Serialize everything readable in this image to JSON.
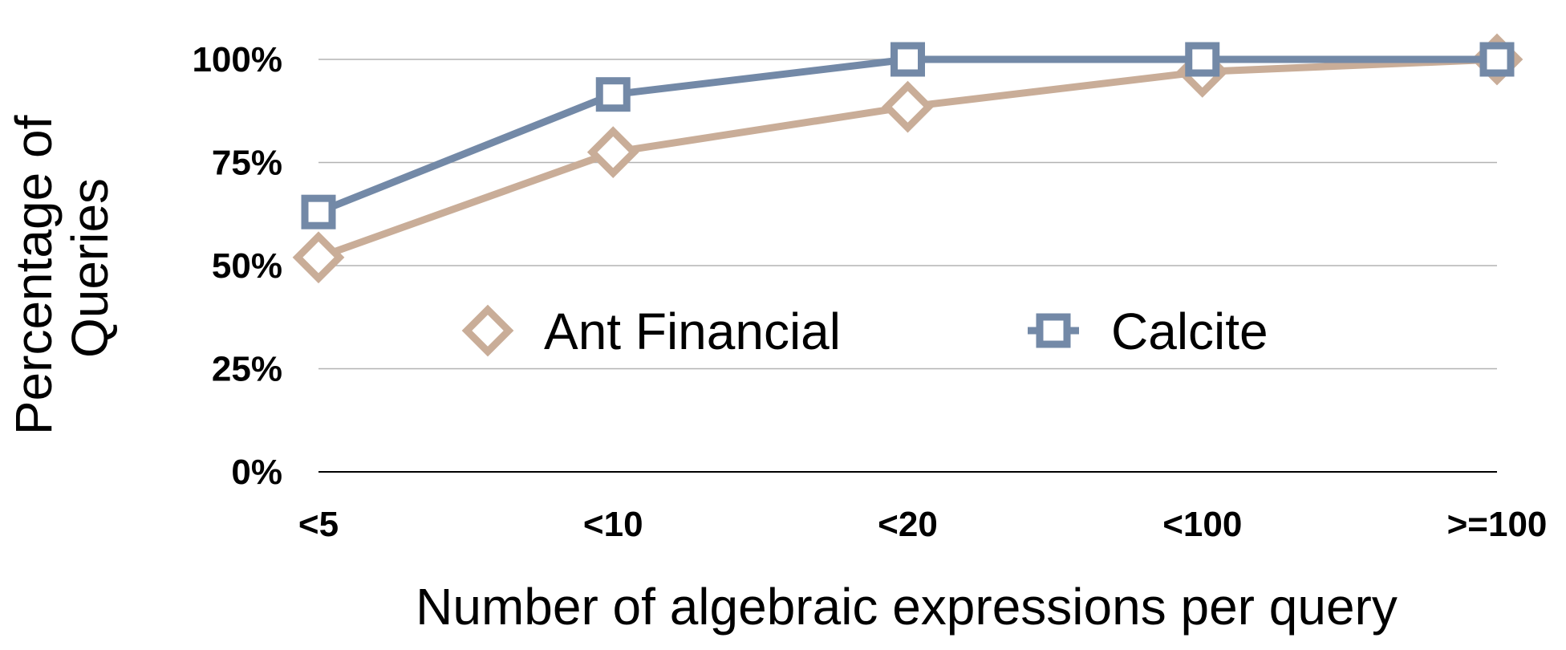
{
  "chart_data": {
    "type": "line",
    "categories": [
      "<5",
      "<10",
      "<20",
      "<100",
      ">=100"
    ],
    "xlabel": "Number of algebraic expressions per query",
    "ylabel": "Percentage of Queries",
    "ylim": [
      0,
      100
    ],
    "yticks": [
      "0%",
      "25%",
      "50%",
      "75%",
      "100%"
    ],
    "grid": true,
    "legend_position": "center",
    "series": [
      {
        "name": "Ant Financial",
        "values": [
          52,
          77.5,
          88.5,
          97,
          100
        ],
        "color": "#c9ad98",
        "marker": "diamond"
      },
      {
        "name": "Calcite",
        "values": [
          63,
          91.5,
          100,
          100,
          100
        ],
        "color": "#7389a7",
        "marker": "square"
      }
    ]
  }
}
